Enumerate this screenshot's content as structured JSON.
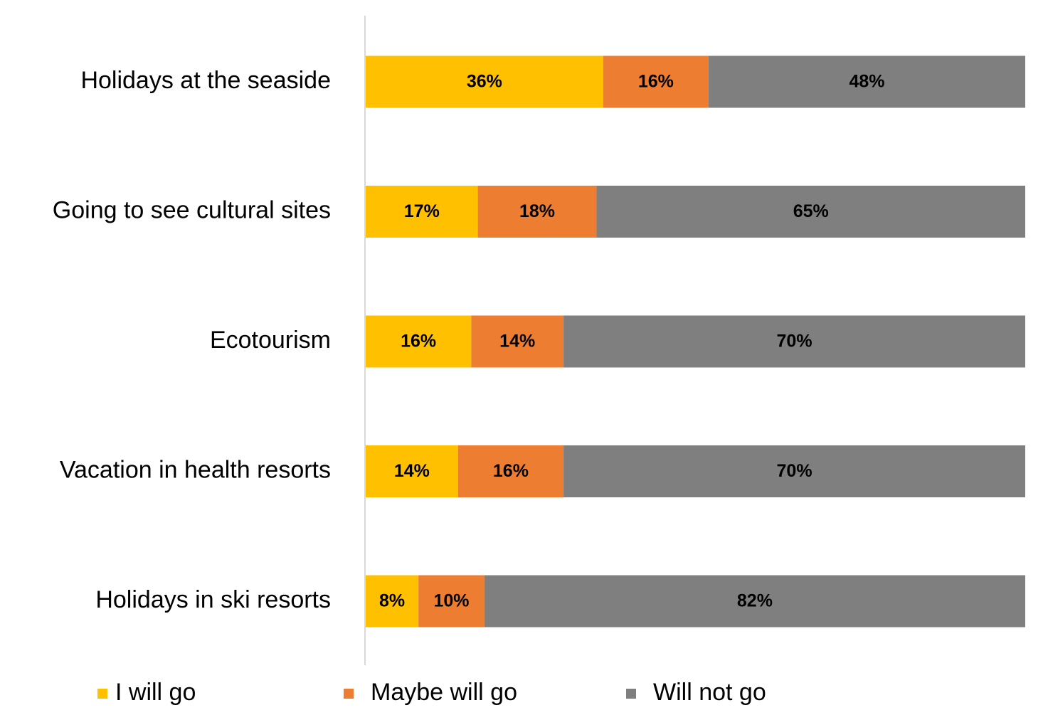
{
  "chart_data": {
    "type": "stacked-bar-horizontal",
    "categories": [
      "Holidays at the seaside",
      "Going to see cultural sites",
      "Ecotourism",
      "Vacation in health resorts",
      "Holidays in ski resorts"
    ],
    "xlim": [
      0,
      100
    ],
    "series": [
      {
        "name": "I will go",
        "color": "#ffc000",
        "values": [
          36,
          17,
          16,
          14,
          8
        ],
        "value_labels": [
          "36%",
          "17%",
          "16%",
          "14%",
          "8%"
        ]
      },
      {
        "name": "Maybe will go",
        "color": "#ed7d31",
        "values": [
          16,
          18,
          14,
          16,
          10
        ],
        "value_labels": [
          "16%",
          "18%",
          "14%",
          "16%",
          "10%"
        ]
      },
      {
        "name": "Will not go",
        "color": "#7f7f7f",
        "values": [
          48,
          65,
          70,
          70,
          82
        ],
        "value_labels": [
          "48%",
          "65%",
          "70%",
          "70%",
          "82%"
        ]
      }
    ],
    "legend": "bottom"
  }
}
